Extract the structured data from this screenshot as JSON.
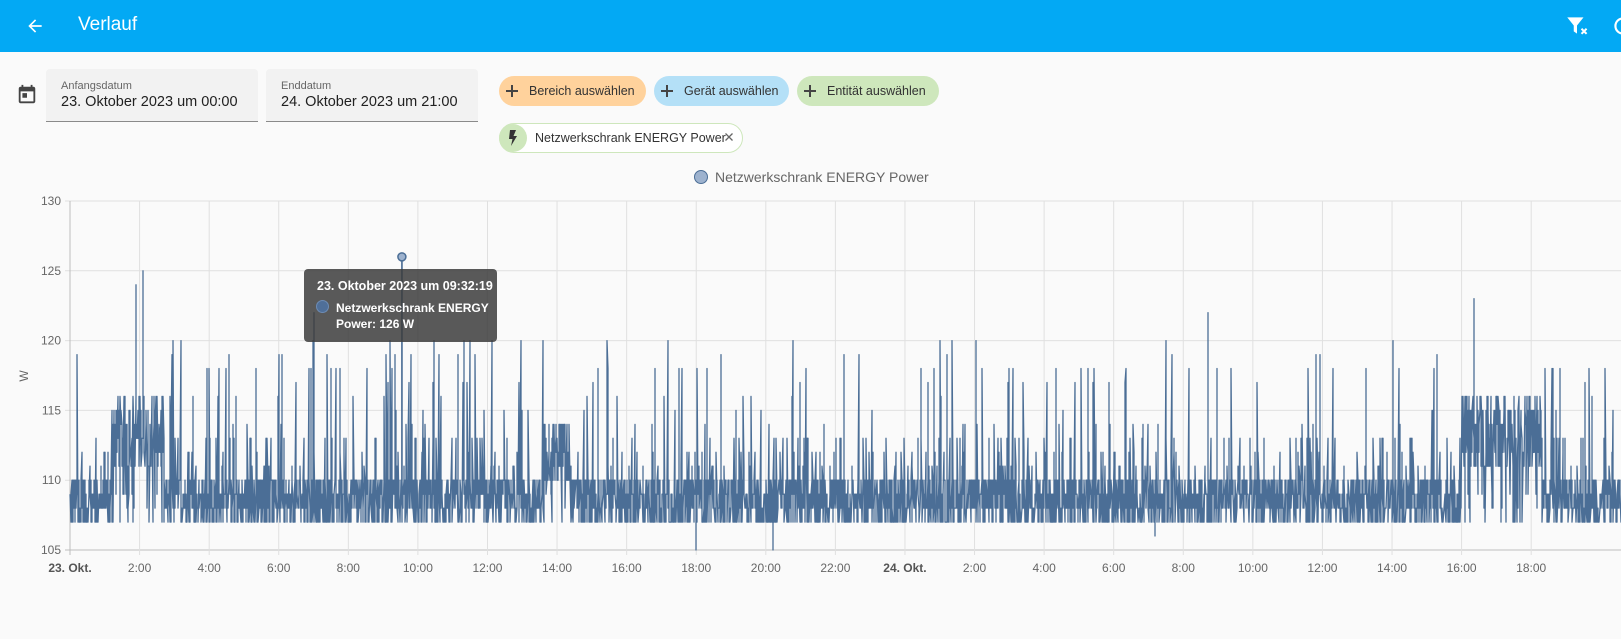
{
  "header": {
    "title": "Verlauf"
  },
  "date_range": {
    "start_label": "Anfangsdatum",
    "start_value": "23. Oktober 2023 um 00:00",
    "end_label": "Enddatum",
    "end_value": "24. Oktober 2023 um 21:00"
  },
  "targets": {
    "area_label": "Bereich auswählen",
    "device_label": "Gerät auswählen",
    "entity_label": "Entität auswählen",
    "selected_entity": "Netzwerkschrank ENERGY Power",
    "colors": {
      "area": "#ffd29c",
      "device": "#b4e0f7",
      "entity": "#cee7bc"
    }
  },
  "chart_data": {
    "type": "line",
    "series": [
      {
        "name": "Netzwerkschrank ENERGY Power",
        "color": "#4b6e96"
      }
    ],
    "ylabel": "W",
    "ylim": [
      105,
      130
    ],
    "yticks": [
      105,
      110,
      115,
      120,
      125,
      130
    ],
    "xlim_hours": [
      0,
      44
    ],
    "xticks": [
      {
        "h": 0,
        "label": "23. Okt.",
        "bold": true
      },
      {
        "h": 2,
        "label": "2:00"
      },
      {
        "h": 4,
        "label": "4:00"
      },
      {
        "h": 6,
        "label": "6:00"
      },
      {
        "h": 8,
        "label": "8:00"
      },
      {
        "h": 10,
        "label": "10:00"
      },
      {
        "h": 12,
        "label": "12:00"
      },
      {
        "h": 14,
        "label": "14:00"
      },
      {
        "h": 16,
        "label": "16:00"
      },
      {
        "h": 18,
        "label": "18:00"
      },
      {
        "h": 20,
        "label": "20:00"
      },
      {
        "h": 22,
        "label": "22:00"
      },
      {
        "h": 24,
        "label": "24. Okt.",
        "bold": true
      },
      {
        "h": 26,
        "label": "2:00"
      },
      {
        "h": 28,
        "label": "4:00"
      },
      {
        "h": 30,
        "label": "6:00"
      },
      {
        "h": 32,
        "label": "8:00"
      },
      {
        "h": 34,
        "label": "10:00"
      },
      {
        "h": 36,
        "label": "12:00"
      },
      {
        "h": 38,
        "label": "14:00"
      },
      {
        "h": 40,
        "label": "16:00"
      },
      {
        "h": 42,
        "label": "18:00"
      }
    ],
    "baseline_range": [
      107,
      110
    ],
    "elevated_periods": [
      {
        "start_h": 1.2,
        "end_h": 2.7,
        "range": [
          111,
          116
        ]
      },
      {
        "start_h": 13.6,
        "end_h": 14.4,
        "range": [
          110,
          114
        ]
      },
      {
        "start_h": 40.0,
        "end_h": 42.3,
        "range": [
          111,
          116
        ]
      }
    ],
    "notable_points": [
      {
        "h": 2.1,
        "value": 125
      },
      {
        "h": 1.9,
        "value": 124
      },
      {
        "h": 9.54,
        "value": 126
      },
      {
        "h": 7.0,
        "value": 122
      },
      {
        "h": 18.0,
        "value": 105
      },
      {
        "h": 20.2,
        "value": 105
      },
      {
        "h": 31.2,
        "value": 106
      },
      {
        "h": 40.35,
        "value": 123
      },
      {
        "h": 32.7,
        "value": 122
      }
    ],
    "tooltip": {
      "time": "23. Oktober 2023 um 09:32:19",
      "series_line1": "Netzwerkschrank ENERGY",
      "series_line2": "Power: 126 W",
      "h": 9.54,
      "value": 126
    }
  }
}
